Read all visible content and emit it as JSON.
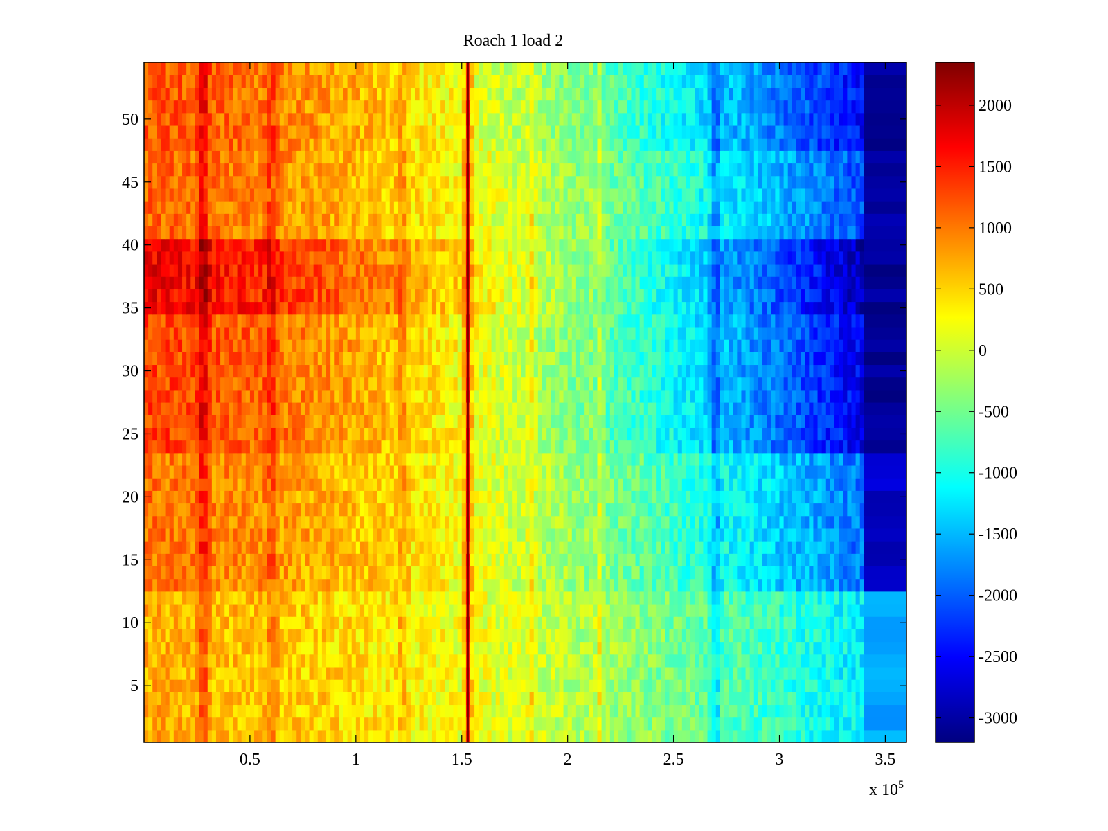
{
  "chart_data": {
    "type": "heatmap",
    "title": "Roach 1 load 2",
    "xlabel": "",
    "ylabel": "",
    "x_exponent_label": "x 10",
    "x_exponent_power": "5",
    "xlim": [
      0,
      3.6
    ],
    "ylim": [
      0.5,
      54.5
    ],
    "x_ticks": [
      0.5,
      1,
      1.5,
      2,
      2.5,
      3,
      3.5
    ],
    "x_tick_labels": [
      "0.5",
      "1",
      "1.5",
      "2",
      "2.5",
      "3",
      "3.5"
    ],
    "y_ticks": [
      5,
      10,
      15,
      20,
      25,
      30,
      35,
      40,
      45,
      50
    ],
    "y_tick_labels": [
      "5",
      "10",
      "15",
      "20",
      "25",
      "30",
      "35",
      "40",
      "45",
      "50"
    ],
    "colorbar": {
      "colormap": "jet",
      "clim": [
        -3200,
        2350
      ],
      "ticks": [
        2000,
        1500,
        1000,
        500,
        0,
        -500,
        -1000,
        -1500,
        -2000,
        -2500,
        -3000
      ],
      "tick_labels": [
        "2000",
        "1500",
        "1000",
        "500",
        "0",
        "-500",
        "-1000",
        "-1500",
        "-2000",
        "-2500",
        "-3000"
      ]
    },
    "data_extent_x": 3.4,
    "row_groups": [
      {
        "rows": [
          1,
          12
        ],
        "x_start_value": 700,
        "x_end_value": -1200,
        "tail_value": -1600
      },
      {
        "rows": [
          13,
          23
        ],
        "x_start_value": 1000,
        "x_end_value": -1900,
        "tail_value": -2800
      },
      {
        "rows": [
          24,
          34
        ],
        "x_start_value": 1300,
        "x_end_value": -2600,
        "tail_value": -3100
      },
      {
        "rows": [
          35,
          40
        ],
        "x_start_value": 1700,
        "x_end_value": -2900,
        "tail_value": -3100
      },
      {
        "rows": [
          41,
          47
        ],
        "x_start_value": 1100,
        "x_end_value": -2100,
        "tail_value": -3000
      },
      {
        "rows": [
          48,
          54
        ],
        "x_start_value": 1200,
        "x_end_value": -2500,
        "tail_value": -3100
      }
    ],
    "vertical_bands": [
      {
        "x": 0.28,
        "value_boost": 900
      },
      {
        "x": 0.6,
        "value_boost": 600
      },
      {
        "x": 1.22,
        "value_boost": 500
      },
      {
        "x": 1.53,
        "value_boost": 2400
      },
      {
        "x": 1.83,
        "value_boost": 700
      },
      {
        "x": 2.15,
        "value_boost": 800
      },
      {
        "x": 2.7,
        "value_boost": -900
      }
    ]
  }
}
